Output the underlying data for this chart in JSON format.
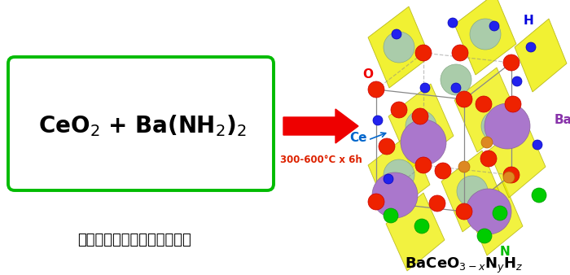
{
  "bg_color": "#ffffff",
  "box_edge_color": "#00bb00",
  "box_color": "#ffffff",
  "arrow_color": "#ee0000",
  "arrow_text": "300-600°C x 6h",
  "arrow_text_color": "#dd2200",
  "bottom_text": "比原来更简单的低温合成工艺",
  "label_O": "O",
  "label_O_color": "#ee0000",
  "label_H": "H",
  "label_H_color": "#0000dd",
  "label_Ce": "Ce",
  "label_Ce_color": "#0066cc",
  "label_Ba": "Ba",
  "label_Ba_color": "#8833aa",
  "label_N": "N",
  "label_N_color": "#00bb00",
  "yellow_poly": "#eeee00",
  "yellow_edge": "#aaaa00",
  "ba_color": "#aa77cc",
  "ba_edge": "#886699",
  "ce_color": "#aaccaa",
  "ce_edge": "#88aa88",
  "o_color": "#ee2200",
  "o_edge": "#cc0000",
  "n_color": "#00cc00",
  "n_edge": "#009900",
  "h_color": "#2222ee",
  "h_edge": "#0000bb",
  "orange_color": "#dd8822",
  "orange_edge": "#bb6600"
}
